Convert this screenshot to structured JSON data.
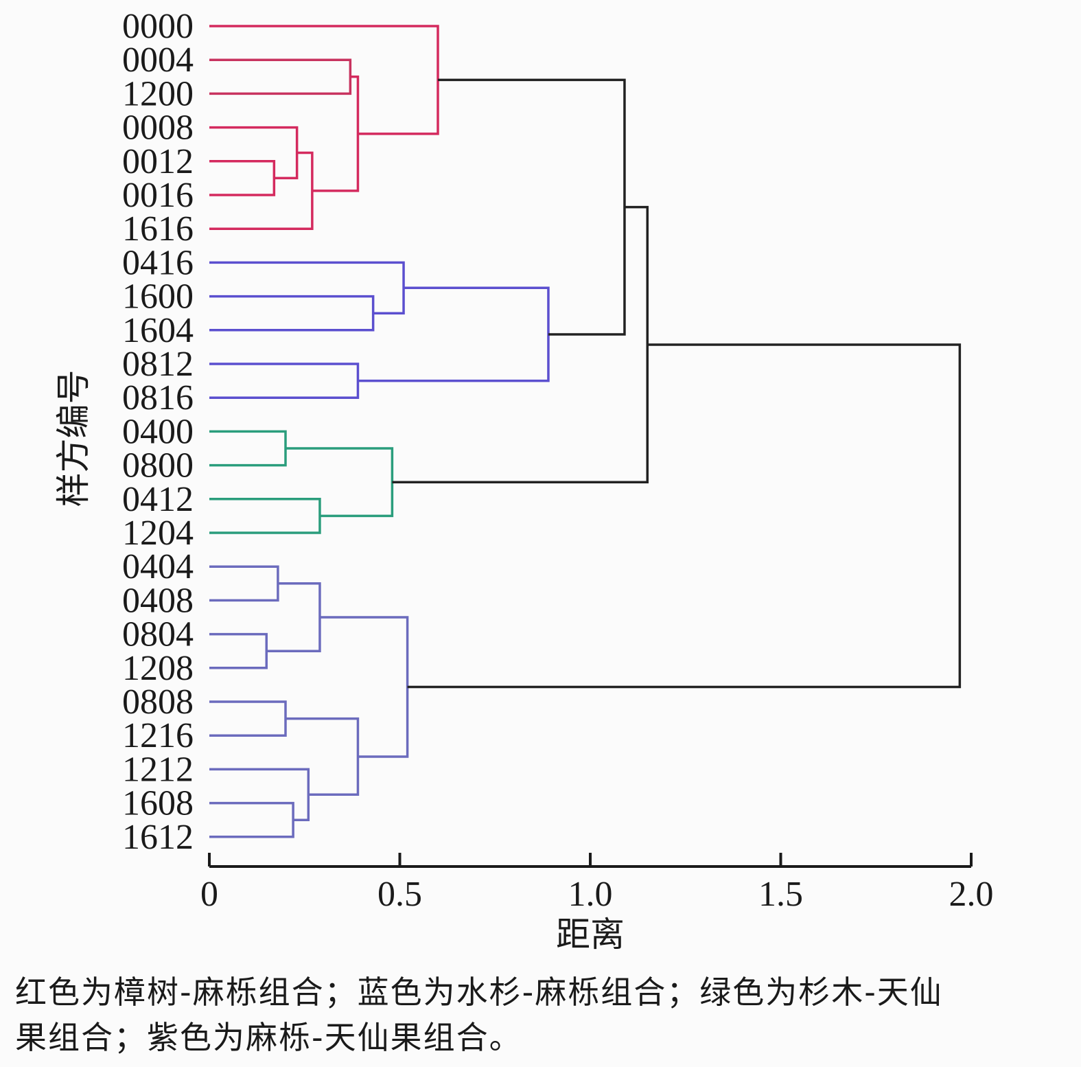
{
  "chart_data": {
    "type": "dendrogram",
    "xlabel": "距离",
    "ylabel": "样方编号",
    "xlim": [
      0,
      2.0
    ],
    "xticks": [
      "0",
      "0.5",
      "1.0",
      "1.5",
      "2.0"
    ],
    "xtick_values": [
      0,
      0.5,
      1.0,
      1.5,
      2.0
    ],
    "leaves": [
      "0000",
      "0004",
      "1200",
      "0008",
      "0012",
      "0016",
      "1616",
      "0416",
      "1600",
      "1604",
      "0812",
      "0816",
      "0400",
      "0800",
      "0412",
      "1204",
      "0404",
      "0408",
      "0804",
      "1208",
      "0808",
      "1216",
      "1212",
      "1608",
      "1612"
    ],
    "merges": [
      {
        "id": "m1",
        "a": "0004",
        "b": "1200",
        "height": 0.37,
        "color": "#c8335f"
      },
      {
        "id": "m2",
        "a": "0012",
        "b": "0016",
        "height": 0.17,
        "color": "#d42a5e"
      },
      {
        "id": "m3",
        "a": "0008",
        "b": "m2",
        "height": 0.23,
        "color": "#d42a5e"
      },
      {
        "id": "m4",
        "a": "m3",
        "b": "1616",
        "height": 0.27,
        "color": "#d42a5e"
      },
      {
        "id": "m5",
        "a": "m1",
        "b": "m4",
        "height": 0.39,
        "color": "#d42a5e"
      },
      {
        "id": "m6",
        "a": "0000",
        "b": "m5",
        "height": 0.6,
        "color": "#d42a5e"
      },
      {
        "id": "m7",
        "a": "1600",
        "b": "1604",
        "height": 0.43,
        "color": "#5b4fcf"
      },
      {
        "id": "m8",
        "a": "0416",
        "b": "m7",
        "height": 0.51,
        "color": "#5b4fcf"
      },
      {
        "id": "m9",
        "a": "0812",
        "b": "0816",
        "height": 0.39,
        "color": "#5b4fcf"
      },
      {
        "id": "m10",
        "a": "m8",
        "b": "m9",
        "height": 0.89,
        "color": "#5b4fcf"
      },
      {
        "id": "m11",
        "a": "m6",
        "b": "m10",
        "height": 1.09,
        "color": "#222222"
      },
      {
        "id": "m12",
        "a": "0400",
        "b": "0800",
        "height": 0.2,
        "color": "#2a9d7c"
      },
      {
        "id": "m13",
        "a": "0412",
        "b": "1204",
        "height": 0.29,
        "color": "#2a9d7c"
      },
      {
        "id": "m14",
        "a": "m12",
        "b": "m13",
        "height": 0.48,
        "color": "#2a9d7c"
      },
      {
        "id": "m15",
        "a": "m11",
        "b": "m14",
        "height": 1.15,
        "color": "#222222"
      },
      {
        "id": "m16",
        "a": "0404",
        "b": "0408",
        "height": 0.18,
        "color": "#6b6bbd"
      },
      {
        "id": "m17",
        "a": "0804",
        "b": "1208",
        "height": 0.15,
        "color": "#6b6bbd"
      },
      {
        "id": "m18",
        "a": "m16",
        "b": "m17",
        "height": 0.29,
        "color": "#6b6bbd"
      },
      {
        "id": "m19",
        "a": "0808",
        "b": "1216",
        "height": 0.2,
        "color": "#6b6bbd"
      },
      {
        "id": "m20",
        "a": "1608",
        "b": "1612",
        "height": 0.22,
        "color": "#6b6bbd"
      },
      {
        "id": "m21",
        "a": "1212",
        "b": "m20",
        "height": 0.26,
        "color": "#6b6bbd"
      },
      {
        "id": "m22",
        "a": "m19",
        "b": "m21",
        "height": 0.39,
        "color": "#6b6bbd"
      },
      {
        "id": "m23",
        "a": "m18",
        "b": "m22",
        "height": 0.52,
        "color": "#6b6bbd"
      },
      {
        "id": "m24",
        "a": "m15",
        "b": "m23",
        "height": 1.97,
        "color": "#222222"
      }
    ],
    "colors": {
      "red": "#d42a5e",
      "blue": "#5b4fcf",
      "green": "#2a9d7c",
      "purple": "#6b6bbd",
      "black": "#222222"
    }
  },
  "caption": {
    "line1": "红色为樟树-麻栎组合；蓝色为水杉-麻栎组合；绿色为杉木-天仙",
    "line2": "果组合；紫色为麻栎-天仙果组合。"
  }
}
